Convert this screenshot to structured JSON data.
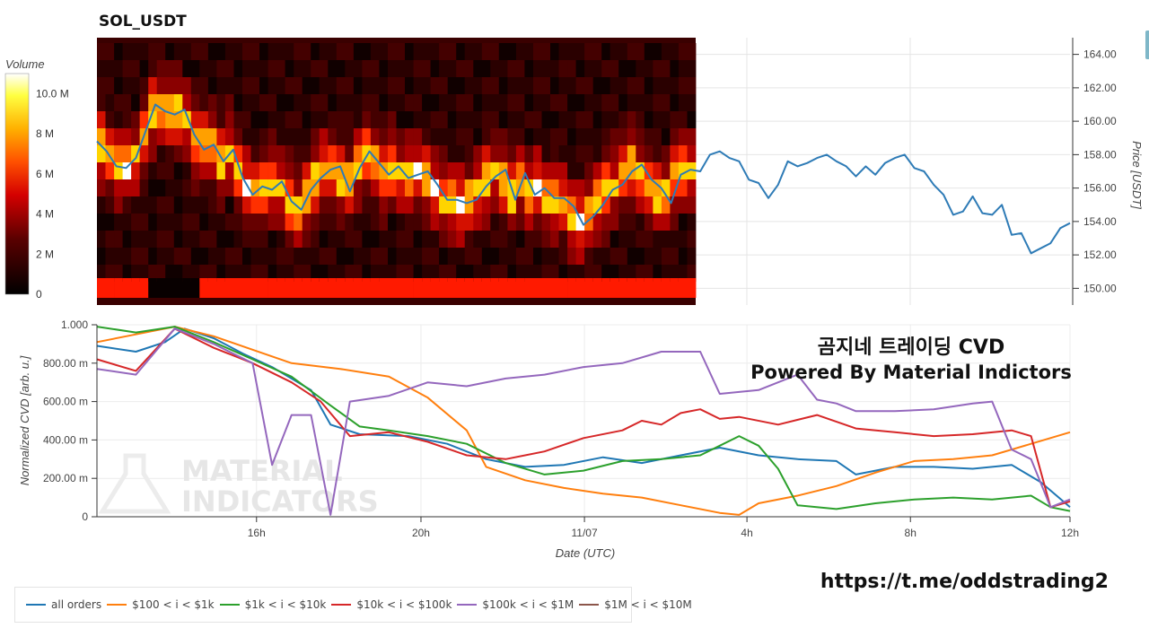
{
  "symbol": "SOL_USDT",
  "overlay": {
    "line1": "곰지네 트레이딩 CVD",
    "line2": "Powered By Material Indictors"
  },
  "watermark": {
    "line1": "MATERIAL",
    "line2": "INDICATORS"
  },
  "url": "https://t.me/oddstrading2",
  "colorbar": {
    "label": "Volume",
    "ticks": [
      "10.0 M",
      "8 M",
      "6 M",
      "4 M",
      "2 M",
      "0"
    ],
    "tick_values": [
      10,
      8,
      6,
      4,
      2,
      0
    ],
    "max": 11
  },
  "colors": {
    "all": "#1f77b4",
    "s100": "#ff7f0e",
    "s1k": "#2ca02c",
    "s10k": "#d62728",
    "s100k": "#9467bd",
    "s1m": "#8c564b",
    "price": "#2e7bb6"
  },
  "chart_data": [
    {
      "type": "line",
      "name": "price_heatmap",
      "title": "SOL_USDT",
      "ylabel": "Price [USDT]",
      "yticks": [
        "164.00",
        "162.00",
        "160.00",
        "158.00",
        "156.00",
        "154.00",
        "152.00",
        "150.00"
      ],
      "ylim": [
        149,
        165
      ],
      "xlim": [
        0,
        100
      ],
      "heatmap_end_x": 62.5,
      "series": [
        {
          "values": [
            [
              0,
              158.8
            ],
            [
              1,
              158.2
            ],
            [
              2,
              157.3
            ],
            [
              3,
              157.2
            ],
            [
              4,
              157.8
            ],
            [
              5,
              159.4
            ],
            [
              6,
              161.0
            ],
            [
              7,
              160.6
            ],
            [
              8,
              160.4
            ],
            [
              9,
              160.7
            ],
            [
              10,
              159.2
            ],
            [
              11,
              158.3
            ],
            [
              12,
              158.6
            ],
            [
              13,
              157.6
            ],
            [
              14,
              158.3
            ],
            [
              15,
              156.6
            ],
            [
              16,
              155.6
            ],
            [
              17,
              156.1
            ],
            [
              18,
              155.9
            ],
            [
              19,
              156.4
            ],
            [
              20,
              155.2
            ],
            [
              21,
              154.7
            ],
            [
              22,
              155.9
            ],
            [
              23,
              156.6
            ],
            [
              24,
              157.1
            ],
            [
              25,
              157.3
            ],
            [
              26,
              155.8
            ],
            [
              27,
              157.2
            ],
            [
              28,
              158.2
            ],
            [
              29,
              157.5
            ],
            [
              30,
              156.8
            ],
            [
              31,
              157.3
            ],
            [
              32,
              156.6
            ],
            [
              33,
              156.8
            ],
            [
              34,
              157.0
            ],
            [
              35,
              156.2
            ],
            [
              36,
              155.3
            ],
            [
              37,
              155.3
            ],
            [
              38,
              155.1
            ],
            [
              39,
              155.3
            ],
            [
              40,
              156.1
            ],
            [
              41,
              156.7
            ],
            [
              42,
              157.1
            ],
            [
              43,
              155.3
            ],
            [
              44,
              156.9
            ],
            [
              45,
              155.6
            ],
            [
              46,
              156.0
            ],
            [
              47,
              155.4
            ],
            [
              48,
              155.4
            ],
            [
              49,
              154.9
            ],
            [
              50,
              153.8
            ],
            [
              51,
              154.3
            ],
            [
              52,
              155.0
            ],
            [
              53,
              155.9
            ],
            [
              54,
              156.2
            ],
            [
              55,
              157.0
            ],
            [
              56,
              157.4
            ],
            [
              57,
              156.5
            ],
            [
              58,
              156.0
            ],
            [
              59,
              155.1
            ],
            [
              60,
              156.8
            ],
            [
              61,
              157.1
            ],
            [
              62,
              157.0
            ],
            [
              63,
              158.0
            ],
            [
              64,
              158.2
            ],
            [
              65,
              157.8
            ],
            [
              66,
              157.6
            ],
            [
              67,
              156.5
            ],
            [
              68,
              156.3
            ],
            [
              69,
              155.4
            ],
            [
              70,
              156.2
            ],
            [
              71,
              157.6
            ],
            [
              72,
              157.3
            ],
            [
              73,
              157.5
            ],
            [
              74,
              157.8
            ],
            [
              75,
              158.0
            ],
            [
              76,
              157.6
            ],
            [
              77,
              157.3
            ],
            [
              78,
              156.7
            ],
            [
              79,
              157.3
            ],
            [
              80,
              156.8
            ],
            [
              81,
              157.5
            ],
            [
              82,
              157.8
            ],
            [
              83,
              158.0
            ],
            [
              84,
              157.2
            ],
            [
              85,
              157.0
            ],
            [
              86,
              156.2
            ],
            [
              87,
              155.6
            ],
            [
              88,
              154.4
            ],
            [
              89,
              154.6
            ],
            [
              90,
              155.5
            ],
            [
              91,
              154.5
            ],
            [
              92,
              154.4
            ],
            [
              93,
              155.0
            ],
            [
              94,
              153.2
            ],
            [
              95,
              153.3
            ],
            [
              96,
              152.1
            ],
            [
              97,
              152.4
            ],
            [
              98,
              152.7
            ],
            [
              99,
              153.6
            ],
            [
              100,
              153.9
            ]
          ]
        }
      ]
    },
    {
      "type": "line",
      "name": "cvd",
      "xlabel": "Date (UTC)",
      "ylabel": "Normalized CVD [arb. u.]",
      "yticks": [
        "1.000",
        "800.00 m",
        "600.00 m",
        "400.00 m",
        "200.00 m",
        "0"
      ],
      "ylim": [
        0,
        1
      ],
      "xticks": [
        "16h",
        "20h",
        "11/07",
        "4h",
        "8h",
        "12h"
      ],
      "xlim": [
        0,
        100
      ],
      "series": [
        {
          "name": "all orders",
          "color_key": "all",
          "values": [
            [
              0,
              0.89
            ],
            [
              4,
              0.86
            ],
            [
              7,
              0.91
            ],
            [
              9,
              0.98
            ],
            [
              12,
              0.93
            ],
            [
              15,
              0.85
            ],
            [
              18,
              0.78
            ],
            [
              22,
              0.66
            ],
            [
              24,
              0.48
            ],
            [
              27,
              0.43
            ],
            [
              32,
              0.42
            ],
            [
              36,
              0.38
            ],
            [
              40,
              0.3
            ],
            [
              44,
              0.26
            ],
            [
              48,
              0.27
            ],
            [
              52,
              0.31
            ],
            [
              56,
              0.28
            ],
            [
              60,
              0.32
            ],
            [
              64,
              0.36
            ],
            [
              68,
              0.32
            ],
            [
              72,
              0.3
            ],
            [
              76,
              0.29
            ],
            [
              78,
              0.22
            ],
            [
              82,
              0.26
            ],
            [
              86,
              0.26
            ],
            [
              90,
              0.25
            ],
            [
              94,
              0.27
            ],
            [
              97,
              0.18
            ],
            [
              100,
              0.05
            ]
          ]
        },
        {
          "name": "$100 < i < $1k",
          "color_key": "s100",
          "values": [
            [
              0,
              0.91
            ],
            [
              4,
              0.95
            ],
            [
              8,
              0.99
            ],
            [
              12,
              0.94
            ],
            [
              16,
              0.87
            ],
            [
              20,
              0.8
            ],
            [
              25,
              0.77
            ],
            [
              30,
              0.73
            ],
            [
              34,
              0.62
            ],
            [
              38,
              0.45
            ],
            [
              40,
              0.26
            ],
            [
              44,
              0.19
            ],
            [
              48,
              0.15
            ],
            [
              52,
              0.12
            ],
            [
              56,
              0.1
            ],
            [
              60,
              0.06
            ],
            [
              64,
              0.02
            ],
            [
              66,
              0.01
            ],
            [
              68,
              0.07
            ],
            [
              72,
              0.11
            ],
            [
              76,
              0.16
            ],
            [
              80,
              0.23
            ],
            [
              84,
              0.29
            ],
            [
              88,
              0.3
            ],
            [
              92,
              0.32
            ],
            [
              96,
              0.38
            ],
            [
              100,
              0.44
            ]
          ]
        },
        {
          "name": "$1k < i < $10k",
          "color_key": "s1k",
          "values": [
            [
              0,
              0.99
            ],
            [
              4,
              0.96
            ],
            [
              8,
              0.99
            ],
            [
              12,
              0.91
            ],
            [
              16,
              0.82
            ],
            [
              20,
              0.73
            ],
            [
              24,
              0.58
            ],
            [
              27,
              0.47
            ],
            [
              30,
              0.45
            ],
            [
              34,
              0.42
            ],
            [
              38,
              0.38
            ],
            [
              42,
              0.28
            ],
            [
              46,
              0.22
            ],
            [
              50,
              0.24
            ],
            [
              54,
              0.29
            ],
            [
              58,
              0.3
            ],
            [
              62,
              0.32
            ],
            [
              64,
              0.37
            ],
            [
              66,
              0.42
            ],
            [
              68,
              0.37
            ],
            [
              70,
              0.25
            ],
            [
              72,
              0.06
            ],
            [
              76,
              0.04
            ],
            [
              80,
              0.07
            ],
            [
              84,
              0.09
            ],
            [
              88,
              0.1
            ],
            [
              92,
              0.09
            ],
            [
              96,
              0.11
            ],
            [
              98,
              0.05
            ],
            [
              100,
              0.03
            ]
          ]
        },
        {
          "name": "$10k < i < $100k",
          "color_key": "s10k",
          "values": [
            [
              0,
              0.82
            ],
            [
              4,
              0.76
            ],
            [
              8,
              0.98
            ],
            [
              12,
              0.88
            ],
            [
              16,
              0.8
            ],
            [
              20,
              0.7
            ],
            [
              23,
              0.6
            ],
            [
              26,
              0.42
            ],
            [
              30,
              0.44
            ],
            [
              34,
              0.39
            ],
            [
              38,
              0.32
            ],
            [
              42,
              0.3
            ],
            [
              46,
              0.34
            ],
            [
              50,
              0.41
            ],
            [
              54,
              0.45
            ],
            [
              56,
              0.5
            ],
            [
              58,
              0.48
            ],
            [
              60,
              0.54
            ],
            [
              62,
              0.56
            ],
            [
              64,
              0.51
            ],
            [
              66,
              0.52
            ],
            [
              70,
              0.48
            ],
            [
              74,
              0.53
            ],
            [
              78,
              0.46
            ],
            [
              82,
              0.44
            ],
            [
              86,
              0.42
            ],
            [
              90,
              0.43
            ],
            [
              94,
              0.45
            ],
            [
              96,
              0.42
            ],
            [
              98,
              0.05
            ],
            [
              100,
              0.08
            ]
          ]
        },
        {
          "name": "$100k < i < $1M",
          "color_key": "s100k",
          "values": [
            [
              0,
              0.77
            ],
            [
              4,
              0.74
            ],
            [
              8,
              0.98
            ],
            [
              12,
              0.9
            ],
            [
              14,
              0.85
            ],
            [
              16,
              0.8
            ],
            [
              18,
              0.27
            ],
            [
              20,
              0.53
            ],
            [
              22,
              0.53
            ],
            [
              24,
              0.01
            ],
            [
              26,
              0.6
            ],
            [
              30,
              0.63
            ],
            [
              34,
              0.7
            ],
            [
              38,
              0.68
            ],
            [
              42,
              0.72
            ],
            [
              46,
              0.74
            ],
            [
              50,
              0.78
            ],
            [
              54,
              0.8
            ],
            [
              58,
              0.86
            ],
            [
              62,
              0.86
            ],
            [
              64,
              0.64
            ],
            [
              68,
              0.66
            ],
            [
              72,
              0.74
            ],
            [
              74,
              0.61
            ],
            [
              76,
              0.59
            ],
            [
              78,
              0.55
            ],
            [
              82,
              0.55
            ],
            [
              86,
              0.56
            ],
            [
              90,
              0.59
            ],
            [
              92,
              0.6
            ],
            [
              94,
              0.35
            ],
            [
              96,
              0.3
            ],
            [
              98,
              0.05
            ],
            [
              100,
              0.09
            ]
          ]
        },
        {
          "name": "$1M < i < $10M",
          "color_key": "s1m",
          "values": []
        }
      ]
    }
  ],
  "legend": [
    {
      "label": "all orders",
      "color_key": "all"
    },
    {
      "label": "$100 < i < $1k",
      "color_key": "s100"
    },
    {
      "label": "$1k < i < $10k",
      "color_key": "s1k"
    },
    {
      "label": "$10k < i < $100k",
      "color_key": "s10k"
    },
    {
      "label": "$100k < i < $1M",
      "color_key": "s100k"
    },
    {
      "label": "$1M < i < $10M",
      "color_key": "s1m"
    }
  ]
}
